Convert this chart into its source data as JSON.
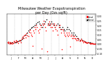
{
  "title": "Milwaukee Weather Evapotranspiration\nper Day (Ozs sq/ft)",
  "title_fontsize": 3.5,
  "background_color": "#ffffff",
  "plot_bg_color": "#ffffff",
  "grid_color": "#bbbbbb",
  "x_min": 0,
  "x_max": 365,
  "y_min": -0.12,
  "y_max": 0.32,
  "y_ticks": [
    -0.1,
    -0.05,
    0.0,
    0.05,
    0.1,
    0.15,
    0.2,
    0.25,
    0.3
  ],
  "y_tick_labels": [
    "-0.10",
    "-0.05",
    "0.00",
    "0.05",
    "0.10",
    "0.15",
    "0.20",
    "0.25",
    "0.30"
  ],
  "month_starts": [
    1,
    32,
    60,
    91,
    121,
    152,
    182,
    213,
    244,
    274,
    305,
    335,
    366
  ],
  "month_labels": [
    "J",
    "F",
    "M",
    "A",
    "M",
    "J",
    "J",
    "A",
    "S",
    "O",
    "N",
    "D"
  ],
  "legend_label_actual": "Actual",
  "legend_label_normal": "Normal",
  "legend_color_actual": "#ff0000",
  "legend_color_normal": "#000000",
  "dot_size": 1.2,
  "actual_x": [
    3,
    5,
    7,
    10,
    12,
    15,
    17,
    20,
    22,
    25,
    28,
    32,
    35,
    38,
    41,
    44,
    47,
    50,
    53,
    56,
    60,
    63,
    66,
    69,
    72,
    75,
    78,
    81,
    84,
    87,
    91,
    94,
    97,
    100,
    103,
    106,
    109,
    112,
    115,
    118,
    121,
    124,
    127,
    130,
    133,
    136,
    139,
    142,
    145,
    148,
    152,
    155,
    158,
    161,
    164,
    167,
    170,
    173,
    176,
    179,
    182,
    185,
    188,
    191,
    194,
    197,
    200,
    203,
    206,
    209,
    213,
    216,
    219,
    222,
    225,
    228,
    231,
    234,
    237,
    240,
    244,
    247,
    250,
    253,
    256,
    259,
    262,
    265,
    268,
    271,
    274,
    277,
    280,
    283,
    286,
    289,
    292,
    295,
    298,
    301,
    305,
    308,
    311,
    314,
    317,
    320,
    323,
    326,
    329,
    332,
    335,
    338,
    341,
    344,
    347,
    350,
    353,
    356,
    360,
    363
  ],
  "actual_y": [
    0.02,
    0.01,
    0.025,
    0.005,
    0.015,
    0.02,
    0.01,
    0.005,
    0.015,
    0.01,
    0.03,
    0.025,
    0.02,
    0.04,
    0.03,
    0.025,
    0.01,
    0.03,
    0.035,
    0.02,
    0.05,
    0.07,
    0.08,
    0.06,
    0.09,
    0.1,
    0.07,
    0.11,
    0.09,
    0.08,
    0.13,
    0.15,
    0.12,
    0.1,
    0.08,
    -0.02,
    0.14,
    0.12,
    0.18,
    0.16,
    0.2,
    0.18,
    0.14,
    0.12,
    0.16,
    0.2,
    0.18,
    -0.05,
    0.22,
    0.2,
    0.25,
    0.22,
    0.18,
    0.14,
    -0.08,
    0.2,
    0.22,
    0.24,
    0.2,
    0.18,
    0.22,
    0.18,
    0.14,
    0.2,
    0.22,
    0.18,
    0.16,
    0.2,
    0.14,
    0.1,
    0.18,
    0.2,
    0.16,
    0.12,
    -0.06,
    0.16,
    0.14,
    0.12,
    0.1,
    0.08,
    0.12,
    0.1,
    0.08,
    0.12,
    0.1,
    -0.03,
    0.08,
    0.1,
    0.06,
    0.08,
    0.06,
    0.08,
    0.06,
    0.05,
    0.04,
    0.06,
    0.04,
    0.05,
    0.03,
    0.04,
    0.05,
    0.04,
    0.03,
    0.02,
    0.03,
    0.025,
    0.02,
    0.015,
    0.01,
    0.02,
    0.015,
    0.01,
    0.005,
    0.01,
    0.005,
    0.008,
    0.003,
    0.005,
    0.002,
    0.001
  ],
  "normal_x": [
    5,
    10,
    15,
    20,
    25,
    30,
    36,
    41,
    46,
    51,
    57,
    62,
    67,
    72,
    78,
    83,
    88,
    93,
    99,
    104,
    109,
    114,
    120,
    125,
    130,
    135,
    140,
    145,
    152,
    157,
    162,
    167,
    173,
    178,
    183,
    188,
    193,
    198,
    203,
    208,
    213,
    218,
    223,
    228,
    233,
    238,
    244,
    249,
    254,
    259,
    265,
    270,
    275,
    280,
    285,
    290,
    295,
    300,
    306,
    311,
    316,
    321,
    326,
    331,
    336,
    341,
    346,
    351,
    356,
    361
  ],
  "normal_y": [
    0.01,
    0.015,
    0.01,
    0.015,
    0.01,
    0.02,
    0.02,
    0.025,
    0.03,
    0.035,
    0.04,
    0.05,
    0.07,
    0.09,
    0.1,
    0.12,
    0.14,
    0.16,
    0.17,
    0.18,
    0.19,
    0.2,
    0.22,
    0.23,
    0.24,
    0.22,
    0.2,
    0.18,
    0.22,
    0.24,
    0.26,
    0.22,
    0.2,
    0.22,
    0.24,
    0.22,
    0.2,
    0.18,
    0.2,
    0.22,
    0.2,
    0.18,
    0.16,
    0.18,
    0.16,
    0.14,
    0.16,
    0.18,
    0.16,
    0.14,
    0.12,
    0.1,
    0.12,
    0.1,
    0.08,
    0.06,
    0.05,
    0.04,
    0.05,
    0.04,
    0.03,
    0.025,
    0.02,
    0.015,
    0.02,
    0.015,
    0.01,
    0.008,
    0.005,
    0.002
  ]
}
